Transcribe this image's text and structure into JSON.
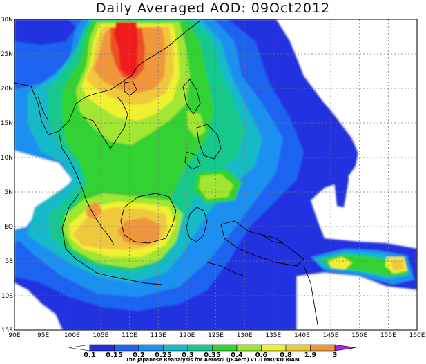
{
  "title": "Daily Averaged AOD: 09Oct2012",
  "credit": "The Japanese Reanalysis for Aerosol (JRAero) v1.0 MRI/KU RIAM",
  "map": {
    "lon_range": [
      90,
      160
    ],
    "lat_range": [
      -15,
      30
    ],
    "lon_ticks": [
      {
        "value": 90,
        "label": "90E"
      },
      {
        "value": 95,
        "label": "95E"
      },
      {
        "value": 100,
        "label": "100E"
      },
      {
        "value": 105,
        "label": "105E"
      },
      {
        "value": 110,
        "label": "110E"
      },
      {
        "value": 115,
        "label": "115E"
      },
      {
        "value": 120,
        "label": "120E"
      },
      {
        "value": 125,
        "label": "125E"
      },
      {
        "value": 130,
        "label": "130E"
      },
      {
        "value": 135,
        "label": "135E"
      },
      {
        "value": 140,
        "label": "140E"
      },
      {
        "value": 145,
        "label": "145E"
      },
      {
        "value": 150,
        "label": "150E"
      },
      {
        "value": 155,
        "label": "155E"
      },
      {
        "value": 160,
        "label": "160E"
      }
    ],
    "lat_ticks": [
      {
        "value": 30,
        "label": "30N"
      },
      {
        "value": 25,
        "label": "25N"
      },
      {
        "value": 20,
        "label": "20N"
      },
      {
        "value": 15,
        "label": "15N"
      },
      {
        "value": 10,
        "label": "10N"
      },
      {
        "value": 5,
        "label": "5N"
      },
      {
        "value": 0,
        "label": "EQ"
      },
      {
        "value": -5,
        "label": "5S"
      },
      {
        "value": -10,
        "label": "10S"
      },
      {
        "value": -15,
        "label": "15S"
      }
    ],
    "grid": true
  },
  "colorbar": {
    "labels": [
      "0.1",
      "0.15",
      "0.2",
      "0.25",
      "0.3",
      "0.35",
      "0.4",
      "0.6",
      "0.8",
      "1.9",
      "3"
    ],
    "colors": [
      "#2030e0",
      "#1e64f0",
      "#1e90f0",
      "#19b9c8",
      "#19c88c",
      "#32d232",
      "#a0e632",
      "#f0f032",
      "#f0c83c",
      "#f0963c",
      "#f05028",
      "#f01e1e",
      "#a028e6"
    ]
  },
  "colors": {
    "c1": "#2030e0",
    "c2": "#1e64f0",
    "c3": "#1e90f0",
    "c4": "#19b9c8",
    "c5": "#19c88c",
    "c6": "#32d232",
    "c7": "#a0e632",
    "c8": "#f0f032",
    "c9": "#f0c83c",
    "c10": "#f0963c",
    "c11": "#f05028",
    "c12": "#f01e1e"
  }
}
